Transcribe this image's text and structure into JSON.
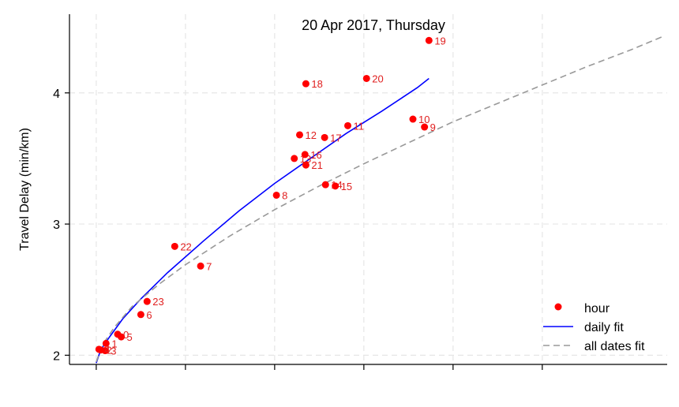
{
  "chart_data": {
    "type": "scatter",
    "title": "20 Apr 2017, Thursday",
    "xlabel": "",
    "ylabel": "Travel Delay (min/km)",
    "xlim": [
      -0.3,
      6.4
    ],
    "ylim": [
      1.93,
      4.6
    ],
    "x_gridlines": [
      0,
      1,
      2,
      3,
      4,
      5
    ],
    "yticks": [
      2,
      3,
      4
    ],
    "grid": true,
    "legend_position": "bottom-right",
    "colors": {
      "points": "#ff0000",
      "labels": "#e02020",
      "daily_fit": "#0000ff",
      "all_dates_fit": "#999999"
    },
    "series": [
      {
        "name": "hour",
        "points": [
          {
            "label": "0",
            "x": 0.24,
            "y": 2.16
          },
          {
            "label": "1",
            "x": 0.11,
            "y": 2.09
          },
          {
            "label": "2",
            "x": 0.05,
            "y": 2.04
          },
          {
            "label": "3",
            "x": 0.1,
            "y": 2.035
          },
          {
            "label": "4",
            "x": 0.03,
            "y": 2.045
          },
          {
            "label": "5",
            "x": 0.28,
            "y": 2.14
          },
          {
            "label": "6",
            "x": 0.5,
            "y": 2.31
          },
          {
            "label": "7",
            "x": 1.17,
            "y": 2.68
          },
          {
            "label": "8",
            "x": 2.02,
            "y": 3.22
          },
          {
            "label": "9",
            "x": 3.68,
            "y": 3.74
          },
          {
            "label": "10",
            "x": 3.55,
            "y": 3.8
          },
          {
            "label": "11",
            "x": 2.82,
            "y": 3.75
          },
          {
            "label": "12",
            "x": 2.28,
            "y": 3.68
          },
          {
            "label": "13",
            "x": 2.22,
            "y": 3.5
          },
          {
            "label": "14",
            "x": 2.57,
            "y": 3.3
          },
          {
            "label": "15",
            "x": 2.68,
            "y": 3.29
          },
          {
            "label": "16",
            "x": 2.34,
            "y": 3.53
          },
          {
            "label": "17",
            "x": 2.56,
            "y": 3.66
          },
          {
            "label": "18",
            "x": 2.35,
            "y": 4.07
          },
          {
            "label": "19",
            "x": 3.73,
            "y": 4.4
          },
          {
            "label": "20",
            "x": 3.03,
            "y": 4.11
          },
          {
            "label": "21",
            "x": 2.35,
            "y": 3.45
          },
          {
            "label": "22",
            "x": 0.88,
            "y": 2.83
          },
          {
            "label": "23",
            "x": 0.57,
            "y": 2.41
          }
        ]
      },
      {
        "name": "daily fit",
        "style": "solid",
        "x": [
          0.0,
          0.05,
          0.15,
          0.3,
          0.5,
          0.8,
          1.2,
          1.6,
          2.0,
          2.4,
          2.8,
          3.2,
          3.6,
          3.73
        ],
        "y": [
          1.94,
          2.04,
          2.14,
          2.28,
          2.43,
          2.63,
          2.87,
          3.1,
          3.31,
          3.5,
          3.69,
          3.86,
          4.04,
          4.11
        ]
      },
      {
        "name": "all dates fit",
        "style": "dashed",
        "x": [
          0.0,
          0.05,
          0.1,
          0.2,
          0.4,
          0.7,
          1.0,
          1.5,
          2.0,
          2.5,
          3.0,
          3.5,
          4.0,
          4.5,
          5.0,
          5.5,
          6.0,
          6.35
        ],
        "y": [
          1.95,
          2.04,
          2.11,
          2.21,
          2.37,
          2.54,
          2.69,
          2.91,
          3.11,
          3.29,
          3.46,
          3.62,
          3.78,
          3.92,
          4.06,
          4.2,
          4.33,
          4.43
        ]
      }
    ],
    "legend": [
      {
        "label": "hour",
        "marker": "dot"
      },
      {
        "label": "daily fit",
        "marker": "solid-line"
      },
      {
        "label": "all dates fit",
        "marker": "dashed-line"
      }
    ]
  }
}
